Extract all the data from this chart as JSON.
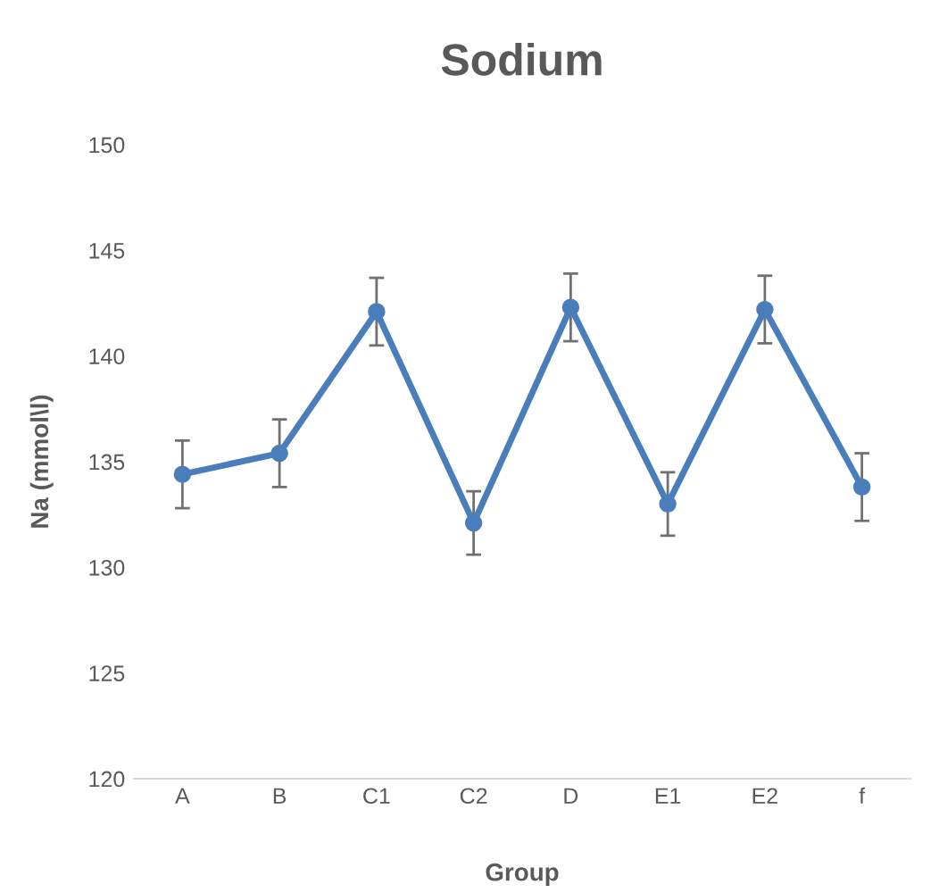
{
  "chart_data": {
    "type": "line",
    "title": "Sodium",
    "xlabel": "Group",
    "ylabel": "Na (mmol\\l)",
    "categories": [
      "A",
      "B",
      "C1",
      "C2",
      "D",
      "E1",
      "E2",
      "f"
    ],
    "series": [
      {
        "color": "#4a7ebb",
        "values": [
          134.4,
          135.4,
          142.1,
          132.1,
          142.3,
          133.0,
          142.2,
          133.8
        ],
        "errors": [
          1.6,
          1.6,
          1.6,
          1.5,
          1.6,
          1.5,
          1.6,
          1.6
        ]
      }
    ],
    "ylim": [
      120,
      150
    ],
    "yticks": [
      120,
      125,
      130,
      135,
      140,
      145,
      150
    ],
    "grid": false,
    "marker": "circle",
    "line_style": "solid"
  }
}
